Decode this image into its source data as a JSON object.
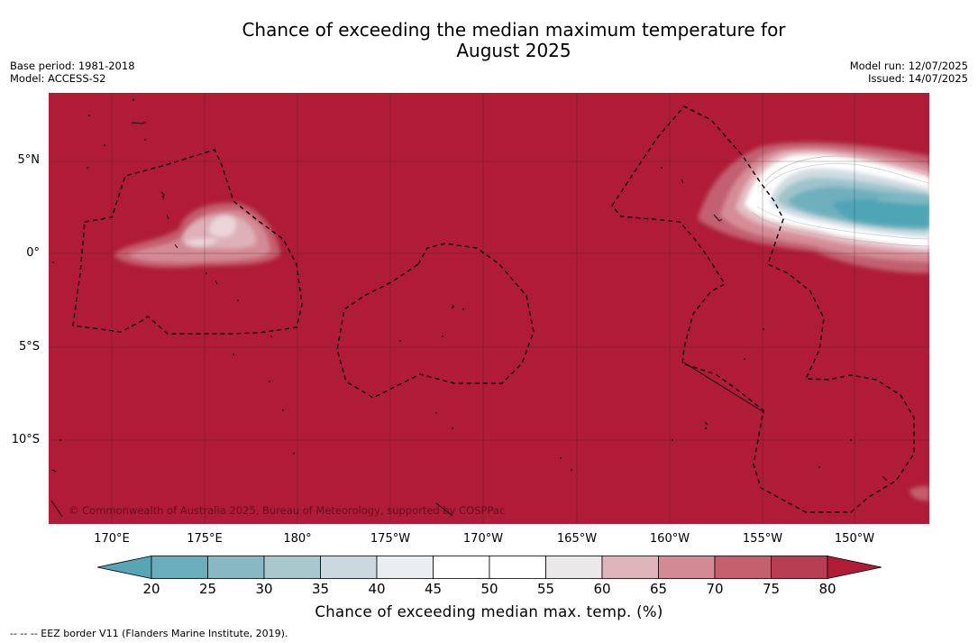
{
  "title": {
    "line1": "Chance of exceeding the median maximum temperature for",
    "line2": "August 2025"
  },
  "info_left": {
    "base_period": "Base period: 1981-2018",
    "model": "Model: ACCESS-S2"
  },
  "info_right": {
    "model_run": "Model run: 12/07/2025",
    "issued": "Issued: 14/07/2025"
  },
  "map": {
    "background_color": "#b01c38",
    "lat_labels": [
      "5°N",
      "0°",
      "5°S",
      "10°S"
    ],
    "lon_labels": [
      "170°E",
      "175°E",
      "180°",
      "175°W",
      "170°W",
      "165°W",
      "160°W",
      "155°W",
      "150°W"
    ],
    "copyright": "© Commonwealth of Australia 2025, Bureau of Meteorology, supported by COSPPac",
    "extent": {
      "lon_range": [
        "167°E",
        "146°W"
      ],
      "lat_range": [
        "14.5°S",
        "8.5°N"
      ]
    },
    "features": [
      {
        "name": "kiribati-warm-anomaly",
        "probability_range": [
          60,
          70
        ],
        "location": "near 175°E, 1°N"
      },
      {
        "name": "equatorial-cool-anomaly",
        "probability_range": [
          20,
          60
        ],
        "location": "east of 155°W, 2–5°N"
      }
    ]
  },
  "colorbar": {
    "ticks": [
      "20",
      "25",
      "30",
      "35",
      "40",
      "45",
      "50",
      "55",
      "60",
      "65",
      "70",
      "75",
      "80"
    ],
    "colors": [
      "#56a6b5",
      "#6aadbc",
      "#87b8c4",
      "#a8c8ce",
      "#cbd8dd",
      "#e9eef0",
      "#ffffff",
      "#ffffff",
      "#eae8e9",
      "#e0b4bb",
      "#d48a94",
      "#c5606f",
      "#b73e52",
      "#b01c38"
    ],
    "label": "Chance of exceeding median max. temp. (%)"
  },
  "footnote": "--  --  -- EEZ border V11 (Flanders Marine Institute, 2019)."
}
